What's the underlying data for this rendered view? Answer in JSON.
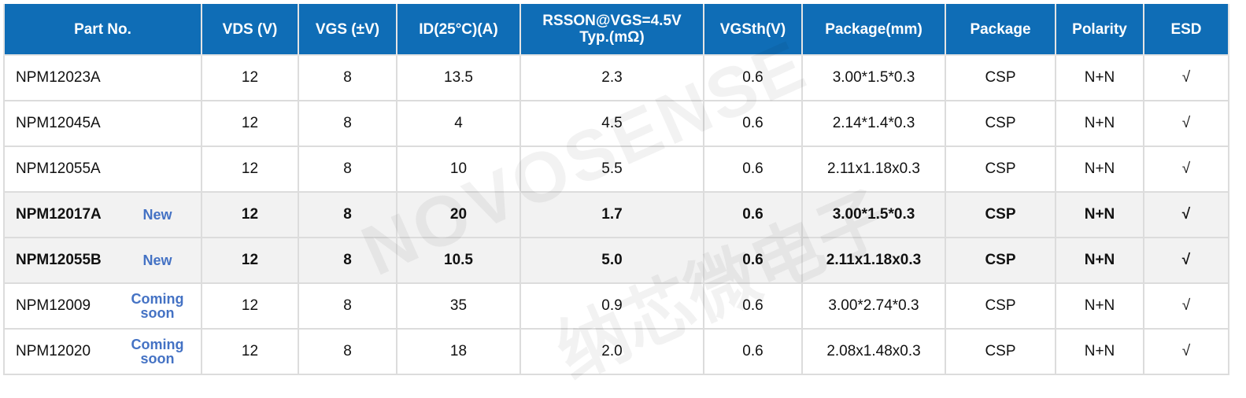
{
  "watermark": {
    "text": "NOVOSENSE",
    "cn": "纳芯微电子"
  },
  "colors": {
    "header_bg": "#0f6db6",
    "badge": "#4472c4",
    "highlight_row": "#f2f2f2"
  },
  "headers": [
    "Part No.",
    "VDS (V)",
    "VGS (±V)",
    "ID(25°C)(A)",
    "RSSON@VGS=4.5V",
    "Typ.(mΩ)",
    "VGSth(V)",
    "Package(mm)",
    "Package",
    "Polarity",
    "ESD"
  ],
  "rows": [
    {
      "part": "NPM12023A",
      "badge": "",
      "vds": "12",
      "vgs": "8",
      "id": "13.5",
      "rds": "2.3",
      "vth": "0.6",
      "pkgmm": "3.00*1.5*0.3",
      "pkg": "CSP",
      "pol": "N+N",
      "esd": "√"
    },
    {
      "part": "NPM12045A",
      "badge": "",
      "vds": "12",
      "vgs": "8",
      "id": "4",
      "rds": "4.5",
      "vth": "0.6",
      "pkgmm": "2.14*1.4*0.3",
      "pkg": "CSP",
      "pol": "N+N",
      "esd": "√"
    },
    {
      "part": "NPM12055A",
      "badge": "",
      "vds": "12",
      "vgs": "8",
      "id": "10",
      "rds": "5.5",
      "vth": "0.6",
      "pkgmm": "2.11x1.18x0.3",
      "pkg": "CSP",
      "pol": "N+N",
      "esd": "√"
    },
    {
      "part": "NPM12017A",
      "badge": "New",
      "vds": "12",
      "vgs": "8",
      "id": "20",
      "rds": "1.7",
      "vth": "0.6",
      "pkgmm": "3.00*1.5*0.3",
      "pkg": "CSP",
      "pol": "N+N",
      "esd": "√",
      "highlight": true
    },
    {
      "part": "NPM12055B",
      "badge": "New",
      "vds": "12",
      "vgs": "8",
      "id": "10.5",
      "rds": "5.0",
      "vth": "0.6",
      "pkgmm": "2.11x1.18x0.3",
      "pkg": "CSP",
      "pol": "N+N",
      "esd": "√",
      "highlight": true
    },
    {
      "part": "NPM12009",
      "badge": "Coming soon",
      "vds": "12",
      "vgs": "8",
      "id": "35",
      "rds": "0.9",
      "vth": "0.6",
      "pkgmm": "3.00*2.74*0.3",
      "pkg": "CSP",
      "pol": "N+N",
      "esd": "√"
    },
    {
      "part": "NPM12020",
      "badge": "Coming soon",
      "vds": "12",
      "vgs": "8",
      "id": "18",
      "rds": "2.0",
      "vth": "0.6",
      "pkgmm": "2.08x1.48x0.3",
      "pkg": "CSP",
      "pol": "N+N",
      "esd": "√"
    }
  ]
}
